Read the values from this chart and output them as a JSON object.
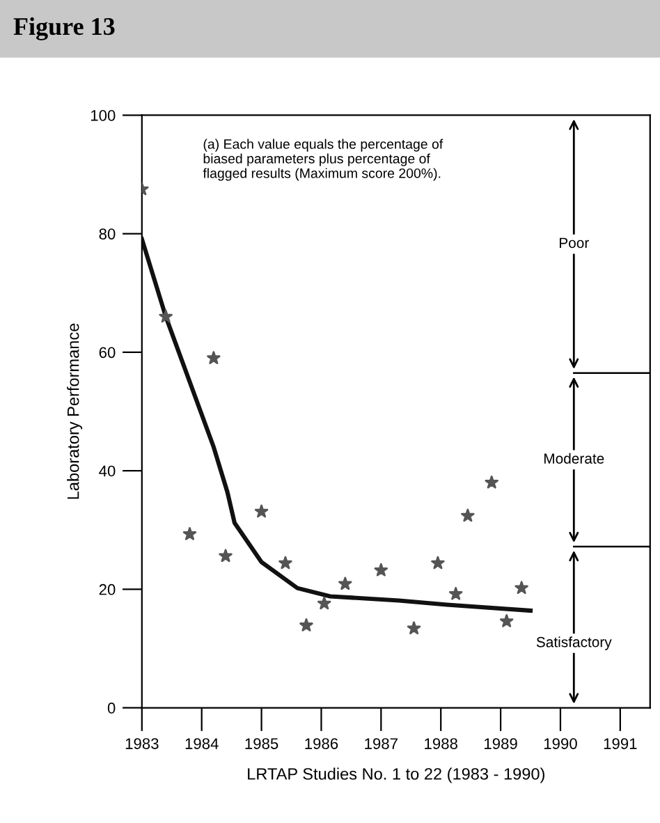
{
  "chart_data": {
    "type": "scatter",
    "title": "Figure 13",
    "xlabel": "LRTAP Studies No. 1 to 22 (1983 - 1990)",
    "ylabel": "Laboratory Performance",
    "annotations": [
      "(a) Each value equals the percentage of\nbiased parameters plus percentage of\nflagged results (Maximum score 200%).",
      "Poor",
      "Moderate",
      "Satisfactory"
    ],
    "xlim": [
      1983,
      1991.5
    ],
    "xticks": [
      1983,
      1984,
      1985,
      1986,
      1987,
      1988,
      1989,
      1990,
      1991
    ],
    "ylim": [
      0,
      100
    ],
    "yticks": [
      0,
      20,
      40,
      60,
      80,
      100
    ],
    "grid": false,
    "legend": false,
    "series": [
      {
        "color": "#555555",
        "marker": "star",
        "x": [
          1983.0,
          1983.4,
          1984.2,
          1983.8,
          1984.4,
          1985.0,
          1985.4,
          1985.75,
          1986.05,
          1986.4,
          1987.0,
          1987.55,
          1987.95,
          1988.25,
          1988.45,
          1988.85,
          1989.1,
          1989.35
        ],
        "values": [
          87.5,
          66,
          59,
          29.3,
          25.6,
          33.1,
          24.4,
          13.9,
          17.6,
          20.9,
          23.2,
          13.4,
          24.4,
          19.2,
          32.4,
          38,
          14.6,
          20.2
        ]
      },
      {
        "type": "line",
        "color": "#111111",
        "marker": "none",
        "line_style": "solid",
        "x": [
          1983.0,
          1983.4,
          1984.2,
          1984.43,
          1984.55,
          1985.0,
          1985.6,
          1986.15,
          1987.3,
          1988.1,
          1989.5
        ],
        "values": [
          79.1,
          66,
          44,
          36.4,
          31.2,
          24.6,
          20.2,
          18.8,
          18.1,
          17.4,
          16.4
        ]
      }
    ],
    "ref_lines": [
      {
        "axis": "y",
        "value": 56.5
      },
      {
        "axis": "y",
        "value": 27.2
      }
    ]
  }
}
